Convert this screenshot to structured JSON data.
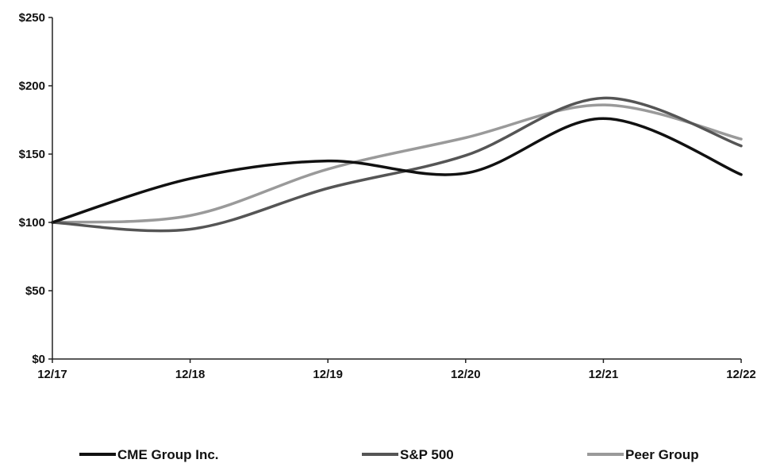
{
  "chart_data": {
    "type": "line",
    "categories": [
      "12/17",
      "12/18",
      "12/19",
      "12/20",
      "12/21",
      "12/22"
    ],
    "y_ticks": [
      "$0",
      "$50",
      "$100",
      "$150",
      "$200",
      "$250"
    ],
    "ylim": [
      0,
      250
    ],
    "grid": false,
    "legend_position": "bottom",
    "series": [
      {
        "name": "CME Group Inc.",
        "color": "#111111",
        "values": [
          100,
          132,
          145,
          136,
          176,
          135
        ]
      },
      {
        "name": "S&P 500",
        "color": "#555555",
        "values": [
          100,
          95,
          125,
          149,
          191,
          156
        ]
      },
      {
        "name": "Peer Group",
        "color": "#9a9a9a",
        "values": [
          100,
          105,
          139,
          162,
          186,
          161
        ]
      }
    ]
  }
}
